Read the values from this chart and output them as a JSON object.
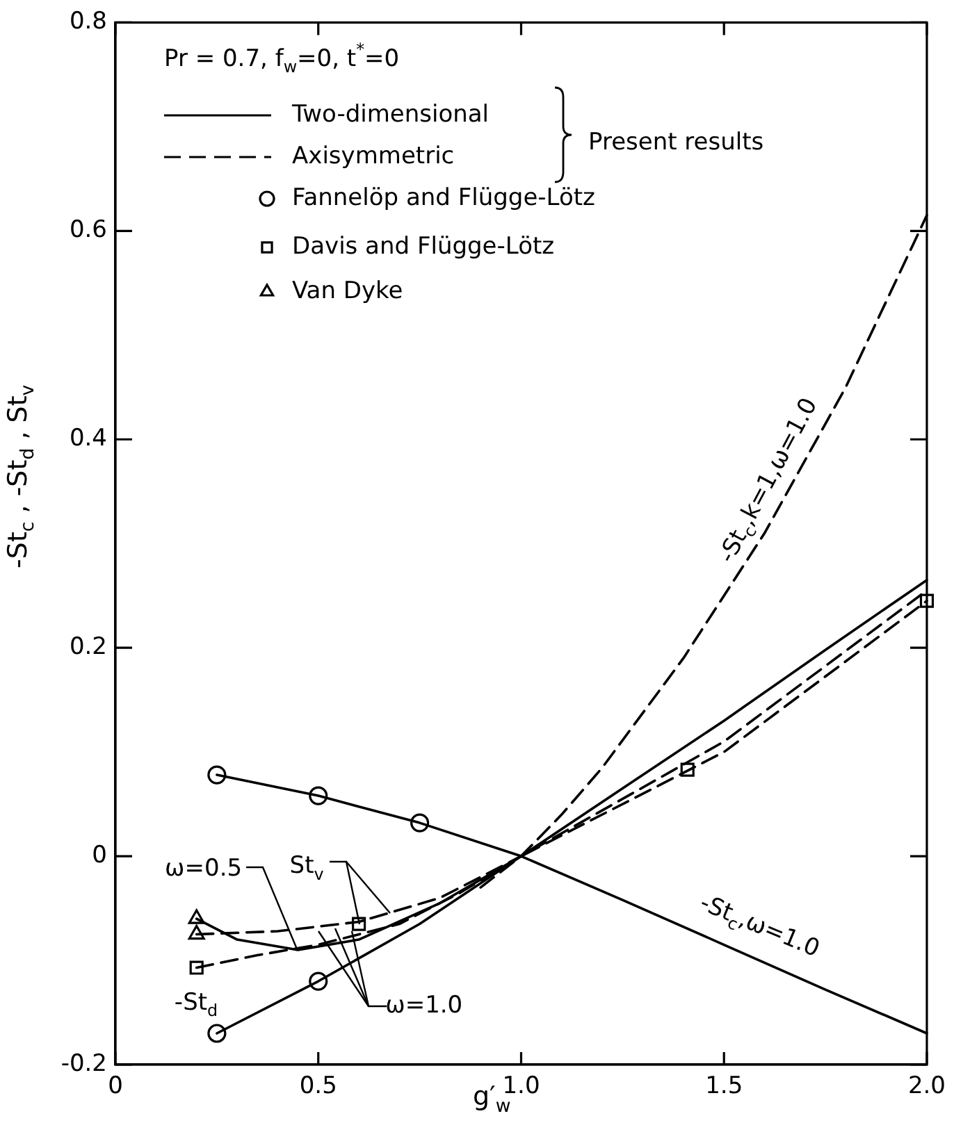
{
  "chart_data": {
    "type": "line",
    "xlabel": "g′$_{w}$",
    "ylabel": "-St$_{c}$ , -St$_{d}$ , St$_{v}$",
    "xlim": [
      0,
      2
    ],
    "ylim": [
      -0.2,
      0.8
    ],
    "xticks": [
      0,
      0.5,
      {
        "value": 1,
        "label": "1.0"
      },
      1.5,
      {
        "value": 2,
        "label": "2.0"
      }
    ],
    "yticks": [
      -0.2,
      0,
      0.2,
      0.4,
      0.6,
      0.8
    ],
    "grid": false,
    "legend": "top left",
    "marker": "none",
    "annotations": [
      "Pr = 0.7, f$_{w}$=0, t$^{*}$=0",
      "Present results",
      "-St$_{c}$,k=1,ω=1.0",
      "-St$_{c}$,ω=1.0",
      {
        "text": "ω=0.5",
        "x": 0.45,
        "y": -0.09
      },
      {
        "text": "St$_{v}$",
        "x": 0.6,
        "y": -0.065
      },
      {
        "text": "ω=1.0",
        "x": 0.5,
        "y": -0.072
      },
      "-St$_{d}$"
    ],
    "series": [
      {
        "name": "Two-dimensional",
        "type": "line",
        "line_style": "solid",
        "color": "#000000",
        "x": [
          0.25,
          0.5,
          0.75,
          1,
          1.25,
          1.5,
          1.75,
          2
        ],
        "values": [
          0.078,
          0.058,
          0.032,
          0,
          -0.042,
          -0.085,
          -0.128,
          -0.17
        ]
      },
      {
        "type": "line",
        "line_style": "solid",
        "color": "#000000",
        "x": [
          0.25,
          0.5,
          0.75,
          1,
          1.25,
          1.5,
          1.75,
          2
        ],
        "values": [
          -0.17,
          -0.12,
          -0.065,
          0,
          0.065,
          0.13,
          0.198,
          0.265
        ]
      },
      {
        "type": "line",
        "line_style": "solid",
        "color": "#000000",
        "x": [
          0.2,
          0.3,
          0.45,
          0.6,
          0.8,
          1
        ],
        "values": [
          -0.06,
          -0.08,
          -0.09,
          -0.08,
          -0.045,
          0
        ]
      },
      {
        "name": "Axisymmetric",
        "type": "line",
        "line_style": "dashed",
        "color": "#000000",
        "x": [
          0.9,
          1,
          1.1,
          1.2,
          1.4,
          1.6,
          1.8,
          2
        ],
        "values": [
          -0.03,
          0,
          0.04,
          0.085,
          0.19,
          0.31,
          0.45,
          0.615
        ]
      },
      {
        "type": "line",
        "line_style": "dashed",
        "color": "#000000",
        "x": [
          0.2,
          0.4,
          0.6,
          0.8,
          1,
          1.5,
          2
        ],
        "values": [
          -0.075,
          -0.072,
          -0.063,
          -0.04,
          0,
          0.11,
          0.255
        ]
      },
      {
        "type": "line",
        "line_style": "dashed",
        "color": "#000000",
        "x": [
          0.2,
          0.35,
          0.5,
          0.7,
          0.85,
          1,
          1.5,
          2
        ],
        "values": [
          -0.107,
          -0.095,
          -0.085,
          -0.065,
          -0.035,
          0,
          0.1,
          0.245
        ]
      },
      {
        "name": "Fannelöp and Flügge-Lötz",
        "type": "scatter",
        "marker": "circle",
        "color": "#000000",
        "x": [
          0.25,
          0.5,
          0.75,
          0.25,
          0.5
        ],
        "values": [
          0.078,
          0.058,
          0.032,
          -0.17,
          -0.12
        ]
      },
      {
        "name": "Davis and Flügge-Lötz",
        "type": "scatter",
        "marker": "square",
        "color": "#000000",
        "x": [
          0.2,
          0.6,
          1.41,
          2
        ],
        "values": [
          -0.107,
          -0.065,
          0.083,
          0.245
        ]
      },
      {
        "name": "Van Dyke",
        "type": "scatter",
        "marker": "triangle",
        "color": "#000000",
        "x": [
          0.2,
          0.2
        ],
        "values": [
          -0.06,
          -0.075
        ]
      }
    ]
  }
}
